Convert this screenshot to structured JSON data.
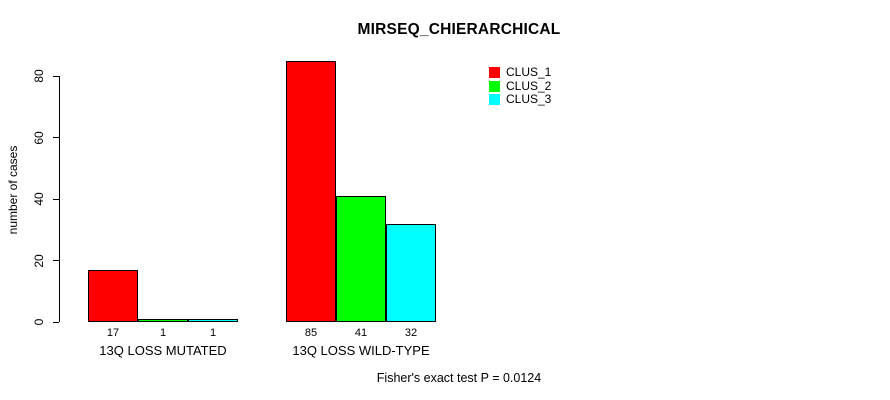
{
  "chart_data": {
    "type": "bar",
    "title": "MIRSEQ_CHIERARCHICAL",
    "xlabel": "",
    "ylabel": "number of cases",
    "categories": [
      "13Q LOSS MUTATED",
      "13Q LOSS WILD-TYPE"
    ],
    "series": [
      {
        "name": "CLUS_1",
        "color": "#ff0000",
        "values": [
          17,
          85
        ]
      },
      {
        "name": "CLUS_2",
        "color": "#00ff00",
        "values": [
          1,
          41
        ]
      },
      {
        "name": "CLUS_3",
        "color": "#00ffff",
        "values": [
          1,
          32
        ]
      }
    ],
    "bar_value_labels": [
      [
        "17",
        "1",
        "1"
      ],
      [
        "85",
        "41",
        "32"
      ]
    ],
    "yticks": [
      0,
      20,
      40,
      60,
      80
    ],
    "ylim": [
      0,
      85
    ],
    "grid": false,
    "legend_position": "top-right",
    "legend_entries": [
      "CLUS_1",
      "CLUS_2",
      "CLUS_3"
    ],
    "annotation": "Fisher's exact test P = 0.0124",
    "colors": {
      "background": "#ffffff",
      "axis": "#000000",
      "bar_border": "#000000",
      "text": "#000000"
    }
  }
}
